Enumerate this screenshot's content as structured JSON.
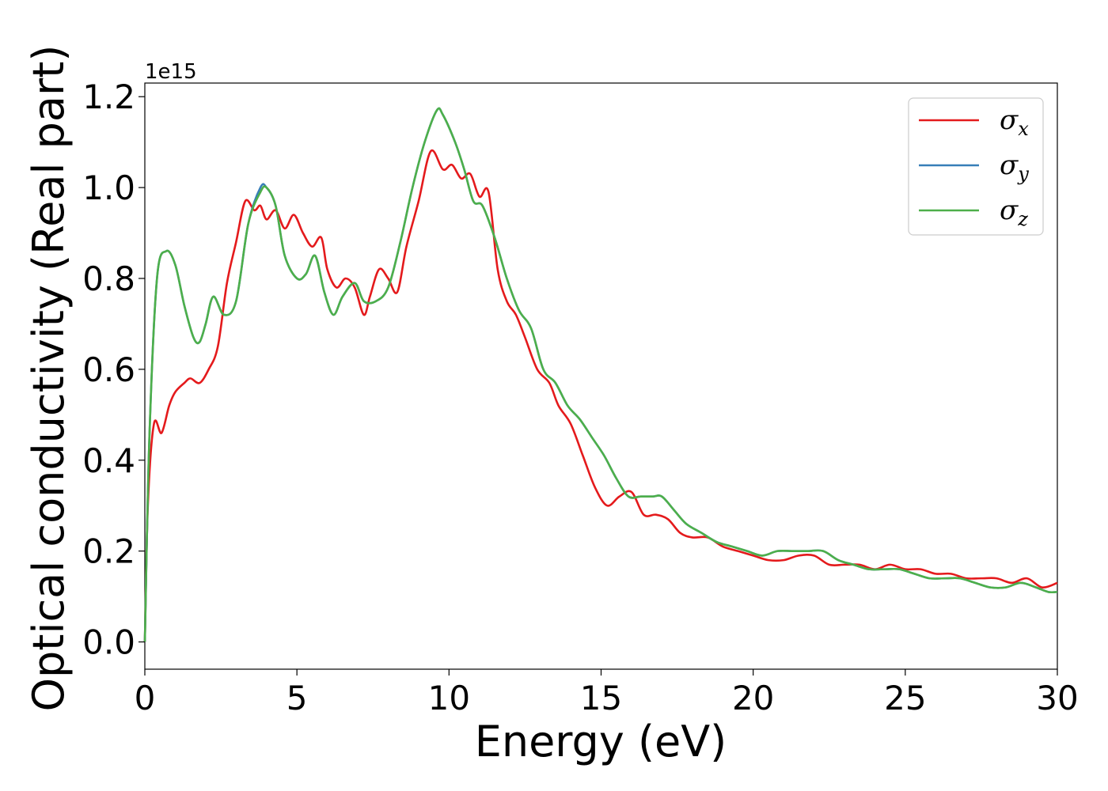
{
  "chart_data": {
    "type": "line",
    "xlabel": "Energy (eV)",
    "ylabel": "Optical conductivity (Real part)",
    "y_offset_label": "1e15",
    "xlim": [
      0,
      30
    ],
    "ylim": [
      -0.06,
      1.23
    ],
    "xticks": [
      0,
      5,
      10,
      15,
      20,
      25,
      30
    ],
    "xtick_labels": [
      "0",
      "5",
      "10",
      "15",
      "20",
      "25",
      "30"
    ],
    "yticks": [
      0.0,
      0.2,
      0.4,
      0.6,
      0.8,
      1.0,
      1.2
    ],
    "ytick_labels": [
      "0.0",
      "0.2",
      "0.4",
      "0.6",
      "0.8",
      "1.0",
      "1.2"
    ],
    "grid": false,
    "legend_position": "top-right",
    "series": [
      {
        "name": "σx",
        "base": "σ",
        "sub": "x",
        "color": "#e41a1c",
        "x": [
          0,
          0.1,
          0.3,
          0.55,
          0.8,
          1.0,
          1.3,
          1.5,
          1.8,
          2.1,
          2.4,
          2.7,
          3.0,
          3.3,
          3.6,
          3.8,
          4.0,
          4.3,
          4.6,
          4.9,
          5.2,
          5.5,
          5.8,
          6.0,
          6.3,
          6.6,
          6.9,
          7.2,
          7.4,
          7.7,
          8.0,
          8.3,
          8.6,
          9.0,
          9.4,
          9.8,
          10.1,
          10.4,
          10.7,
          11.0,
          11.3,
          11.6,
          11.9,
          12.2,
          12.5,
          12.9,
          13.3,
          13.6,
          14.0,
          14.4,
          14.8,
          15.2,
          15.6,
          16.0,
          16.4,
          16.8,
          17.2,
          17.6,
          18.0,
          18.5,
          19.0,
          19.5,
          20.0,
          20.5,
          21.0,
          21.5,
          22.0,
          22.5,
          23.0,
          23.5,
          24.0,
          24.5,
          25.0,
          25.5,
          26.0,
          26.5,
          27.0,
          27.5,
          28.0,
          28.5,
          29.0,
          29.5,
          30.0
        ],
        "values": [
          0.0,
          0.3,
          0.48,
          0.46,
          0.52,
          0.55,
          0.57,
          0.58,
          0.57,
          0.6,
          0.65,
          0.79,
          0.88,
          0.97,
          0.95,
          0.96,
          0.93,
          0.95,
          0.91,
          0.94,
          0.9,
          0.87,
          0.89,
          0.82,
          0.78,
          0.8,
          0.78,
          0.72,
          0.76,
          0.82,
          0.8,
          0.77,
          0.87,
          0.97,
          1.08,
          1.04,
          1.05,
          1.02,
          1.03,
          0.98,
          0.99,
          0.82,
          0.75,
          0.72,
          0.67,
          0.6,
          0.57,
          0.52,
          0.48,
          0.41,
          0.34,
          0.3,
          0.32,
          0.33,
          0.28,
          0.28,
          0.27,
          0.24,
          0.23,
          0.23,
          0.21,
          0.2,
          0.19,
          0.18,
          0.18,
          0.19,
          0.19,
          0.17,
          0.17,
          0.17,
          0.16,
          0.17,
          0.16,
          0.16,
          0.15,
          0.15,
          0.14,
          0.14,
          0.14,
          0.13,
          0.14,
          0.12,
          0.13
        ]
      },
      {
        "name": "σy",
        "base": "σ",
        "sub": "y",
        "color": "#377eb8",
        "x": [
          0,
          0.15,
          0.4,
          0.7,
          1.0,
          1.3,
          1.6,
          1.8,
          2.0,
          2.25,
          2.6,
          3.0,
          3.4,
          3.8,
          4.0,
          4.3,
          4.6,
          5.0,
          5.3,
          5.6,
          5.9,
          6.2,
          6.5,
          6.9,
          7.2,
          7.6,
          8.0,
          8.4,
          8.8,
          9.2,
          9.6,
          9.8,
          10.2,
          10.5,
          10.8,
          11.1,
          11.5,
          11.9,
          12.3,
          12.7,
          13.1,
          13.5,
          13.9,
          14.3,
          14.7,
          15.1,
          15.5,
          15.9,
          16.3,
          16.7,
          17.0,
          17.4,
          17.8,
          18.3,
          18.8,
          19.3,
          19.8,
          20.3,
          20.8,
          21.3,
          21.8,
          22.3,
          22.8,
          23.3,
          23.8,
          24.3,
          24.8,
          25.3,
          25.8,
          26.3,
          26.8,
          27.3,
          27.8,
          28.3,
          28.8,
          29.3,
          29.7,
          30.0
        ],
        "values": [
          0.0,
          0.45,
          0.8,
          0.86,
          0.83,
          0.74,
          0.67,
          0.66,
          0.7,
          0.76,
          0.72,
          0.75,
          0.92,
          1.0,
          1.0,
          0.96,
          0.85,
          0.8,
          0.81,
          0.85,
          0.77,
          0.72,
          0.76,
          0.79,
          0.75,
          0.75,
          0.78,
          0.88,
          1.0,
          1.1,
          1.17,
          1.16,
          1.1,
          1.04,
          0.97,
          0.96,
          0.89,
          0.8,
          0.73,
          0.69,
          0.6,
          0.57,
          0.52,
          0.49,
          0.45,
          0.41,
          0.36,
          0.32,
          0.32,
          0.32,
          0.32,
          0.29,
          0.26,
          0.24,
          0.22,
          0.21,
          0.2,
          0.19,
          0.2,
          0.2,
          0.2,
          0.2,
          0.18,
          0.17,
          0.16,
          0.16,
          0.16,
          0.15,
          0.14,
          0.14,
          0.14,
          0.13,
          0.12,
          0.12,
          0.13,
          0.12,
          0.11,
          0.11
        ]
      },
      {
        "name": "σz",
        "base": "σ",
        "sub": "z",
        "color": "#4daf4a",
        "x": [
          0,
          0.15,
          0.4,
          0.7,
          1.0,
          1.3,
          1.6,
          1.8,
          2.0,
          2.25,
          2.6,
          3.0,
          3.4,
          3.8,
          4.0,
          4.3,
          4.6,
          5.0,
          5.3,
          5.6,
          5.9,
          6.2,
          6.5,
          6.9,
          7.2,
          7.6,
          8.0,
          8.4,
          8.8,
          9.2,
          9.6,
          9.8,
          10.2,
          10.5,
          10.8,
          11.1,
          11.5,
          11.9,
          12.3,
          12.7,
          13.1,
          13.5,
          13.9,
          14.3,
          14.7,
          15.1,
          15.5,
          15.9,
          16.3,
          16.7,
          17.0,
          17.4,
          17.8,
          18.3,
          18.8,
          19.3,
          19.8,
          20.3,
          20.8,
          21.3,
          21.8,
          22.3,
          22.8,
          23.3,
          23.8,
          24.3,
          24.8,
          25.3,
          25.8,
          26.3,
          26.8,
          27.3,
          27.8,
          28.3,
          28.8,
          29.3,
          29.7,
          30.0
        ],
        "values": [
          0.0,
          0.45,
          0.8,
          0.86,
          0.83,
          0.74,
          0.67,
          0.66,
          0.7,
          0.76,
          0.72,
          0.75,
          0.92,
          0.99,
          1.0,
          0.96,
          0.85,
          0.8,
          0.81,
          0.85,
          0.77,
          0.72,
          0.76,
          0.79,
          0.75,
          0.75,
          0.78,
          0.88,
          1.0,
          1.1,
          1.17,
          1.16,
          1.1,
          1.04,
          0.97,
          0.96,
          0.89,
          0.8,
          0.73,
          0.69,
          0.6,
          0.57,
          0.52,
          0.49,
          0.45,
          0.41,
          0.36,
          0.32,
          0.32,
          0.32,
          0.32,
          0.29,
          0.26,
          0.24,
          0.22,
          0.21,
          0.2,
          0.19,
          0.2,
          0.2,
          0.2,
          0.2,
          0.18,
          0.17,
          0.16,
          0.16,
          0.16,
          0.15,
          0.14,
          0.14,
          0.14,
          0.13,
          0.12,
          0.12,
          0.13,
          0.12,
          0.11,
          0.11
        ]
      }
    ]
  }
}
